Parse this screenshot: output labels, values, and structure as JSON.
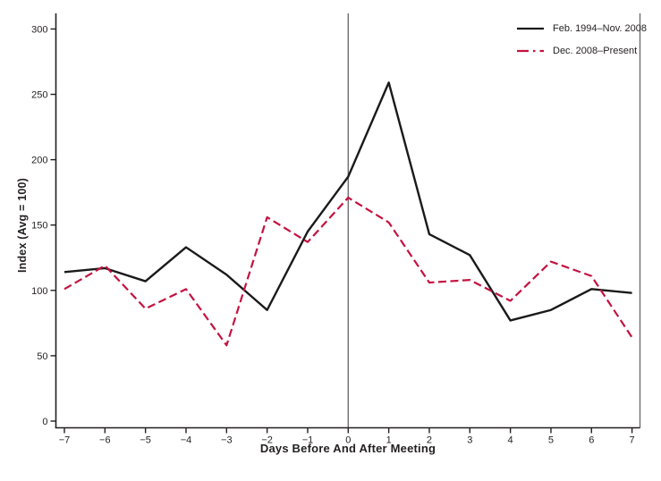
{
  "chart_data": {
    "type": "line",
    "title": "",
    "xlabel": "Days Before And After Meeting",
    "ylabel": "Index (Avg = 100)",
    "x": [
      -7,
      -6,
      -5,
      -4,
      -3,
      -2,
      -1,
      0,
      1,
      2,
      3,
      4,
      5,
      6,
      7
    ],
    "xtick_labels": [
      "−7",
      "−6",
      "−5",
      "−4",
      "−3",
      "−2",
      "−1",
      "0",
      "1",
      "2",
      "3",
      "4",
      "5",
      "6",
      "7"
    ],
    "yticks": [
      0,
      50,
      100,
      150,
      200,
      250,
      300
    ],
    "ylim": [
      0,
      312
    ],
    "xlim": [
      -7.2,
      7.2
    ],
    "grid": false,
    "legend_position": "top-right",
    "reference_line_x": 0,
    "reference_line_color": "#6e6e6e",
    "axis_color": "#231f20",
    "series": [
      {
        "name": "Feb. 1994–Nov. 2008",
        "style": "solid",
        "color": "#1a1a1a",
        "values": [
          114,
          117,
          107,
          133,
          112,
          85,
          145,
          187,
          259,
          143,
          127,
          77,
          85,
          101,
          98
        ]
      },
      {
        "name": "Dec. 2008–Present",
        "style": "dashed",
        "color": "#c41240",
        "values": [
          101,
          119,
          86,
          101,
          58,
          156,
          137,
          171,
          152,
          106,
          108,
          92,
          122,
          111,
          64
        ]
      }
    ]
  }
}
